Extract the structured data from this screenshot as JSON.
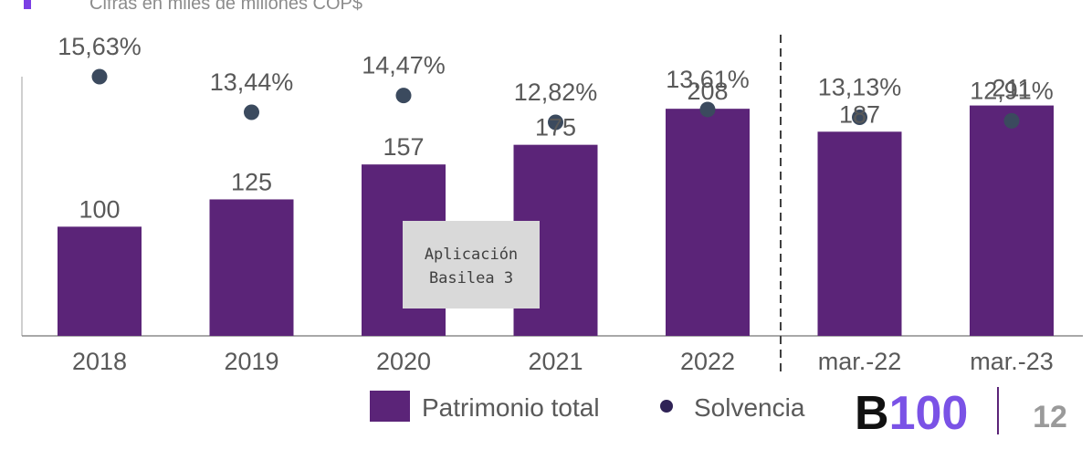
{
  "header": {
    "subtitle": "Cifras en miles de millones COP$"
  },
  "chart_data": {
    "type": "bar",
    "categories": [
      "2018",
      "2019",
      "2020",
      "2021",
      "2022",
      "mar.-22",
      "mar.-23"
    ],
    "series": [
      {
        "name": "Patrimonio total",
        "values": [
          100,
          125,
          157,
          175,
          208,
          187,
          211
        ],
        "color": "#5b2478"
      },
      {
        "name": "Solvencia",
        "values": [
          15.63,
          13.44,
          14.47,
          12.82,
          13.61,
          13.13,
          12.91
        ],
        "labels": [
          "15,63%",
          "13,44%",
          "14,47%",
          "12,82%",
          "13,61%",
          "13,13%",
          "12,91%"
        ],
        "color": "#3b4a5e"
      }
    ],
    "bar_labels": [
      "100",
      "125",
      "157",
      "175",
      "208",
      "187",
      "211"
    ],
    "ylim_bars": [
      0,
      270
    ],
    "ylim_solvencia": [
      0,
      16.5
    ],
    "annotation": {
      "text_line1": "Aplicación",
      "text_line2": "Basilea 3"
    },
    "separator_after_category": "2022",
    "legend": {
      "position": "bottom",
      "items": [
        "Patrimonio total",
        "Solvencia"
      ]
    }
  },
  "footer": {
    "logo_letter": "B",
    "logo_number": "100",
    "page_number": "12"
  },
  "colors": {
    "bar": "#5b2478",
    "dot": "#3b4a5e",
    "accent": "#7b3fe4",
    "annotation_bg": "#d9d9d9",
    "logo_dark": "#111111",
    "logo_purple": "#7a52e6"
  }
}
